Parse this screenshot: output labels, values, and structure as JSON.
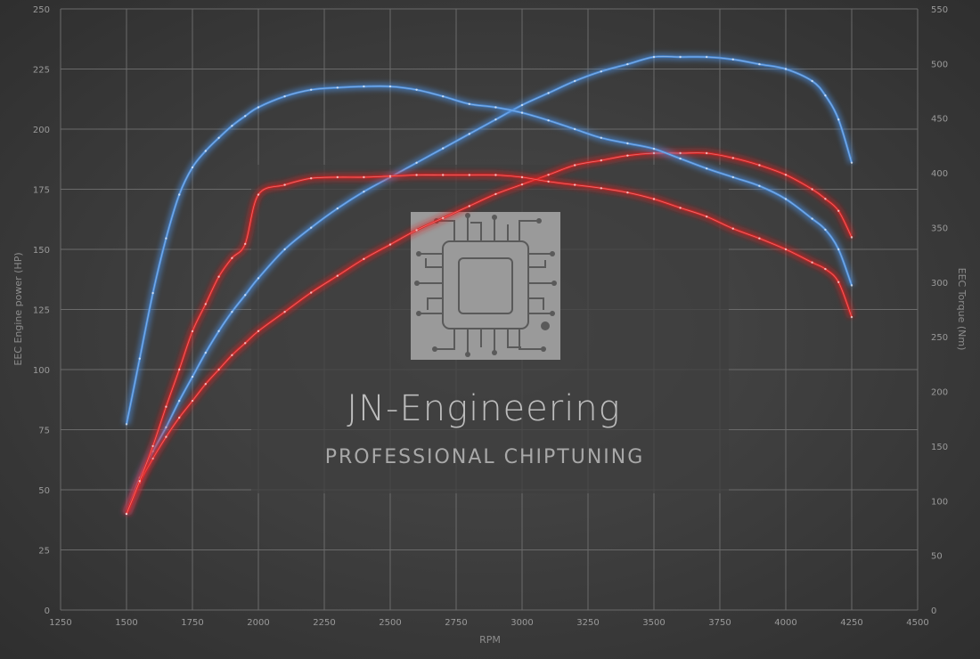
{
  "chart_data": {
    "type": "line",
    "xlabel": "RPM",
    "ylabel_left": "EEC Engine power (HP)",
    "ylabel_right": "EEC Torque (Nm)",
    "xlim": [
      1250,
      4500
    ],
    "ylim_left": [
      0,
      250
    ],
    "ylim_right": [
      0,
      550
    ],
    "x_ticks": [
      1250,
      1500,
      1750,
      2000,
      2250,
      2500,
      2750,
      3000,
      3250,
      3500,
      3750,
      4000,
      4250,
      4500
    ],
    "y_ticks_left": [
      0,
      25,
      50,
      75,
      100,
      125,
      150,
      175,
      200,
      225,
      250
    ],
    "y_ticks_right": [
      0,
      50,
      100,
      150,
      200,
      250,
      300,
      350,
      400,
      450,
      500,
      550
    ],
    "grid": true,
    "colors": {
      "tuned": "#4a90e2",
      "stock": "#e02020",
      "grid": "#6a6a6a",
      "background": "#3a3a3a"
    },
    "series": [
      {
        "kind": "tuned",
        "axis": "left",
        "color": "#4a90e2",
        "points": [
          [
            1500,
            40
          ],
          [
            1550,
            55
          ],
          [
            1600,
            66
          ],
          [
            1650,
            76
          ],
          [
            1700,
            87
          ],
          [
            1750,
            97
          ],
          [
            1800,
            107
          ],
          [
            1850,
            116
          ],
          [
            1900,
            124
          ],
          [
            1950,
            131
          ],
          [
            2000,
            138
          ],
          [
            2100,
            150
          ],
          [
            2200,
            159
          ],
          [
            2300,
            167
          ],
          [
            2400,
            174
          ],
          [
            2500,
            180
          ],
          [
            2600,
            186
          ],
          [
            2700,
            192
          ],
          [
            2800,
            198
          ],
          [
            2900,
            204
          ],
          [
            3000,
            210
          ],
          [
            3100,
            215
          ],
          [
            3200,
            220
          ],
          [
            3300,
            224
          ],
          [
            3400,
            227
          ],
          [
            3500,
            230
          ],
          [
            3600,
            230
          ],
          [
            3700,
            230
          ],
          [
            3800,
            229
          ],
          [
            3900,
            227
          ],
          [
            4000,
            225
          ],
          [
            4100,
            220
          ],
          [
            4150,
            214
          ],
          [
            4200,
            204
          ],
          [
            4250,
            186
          ]
        ]
      },
      {
        "kind": "stock",
        "axis": "left",
        "color": "#e02020",
        "points": [
          [
            1500,
            40
          ],
          [
            1550,
            53
          ],
          [
            1600,
            63
          ],
          [
            1650,
            72
          ],
          [
            1700,
            80
          ],
          [
            1750,
            87
          ],
          [
            1800,
            94
          ],
          [
            1850,
            100
          ],
          [
            1900,
            106
          ],
          [
            1950,
            111
          ],
          [
            2000,
            116
          ],
          [
            2100,
            124
          ],
          [
            2200,
            132
          ],
          [
            2300,
            139
          ],
          [
            2400,
            146
          ],
          [
            2500,
            152
          ],
          [
            2600,
            158
          ],
          [
            2700,
            163
          ],
          [
            2800,
            168
          ],
          [
            2900,
            173
          ],
          [
            3000,
            177
          ],
          [
            3100,
            181
          ],
          [
            3200,
            185
          ],
          [
            3300,
            187
          ],
          [
            3400,
            189
          ],
          [
            3500,
            190
          ],
          [
            3600,
            190
          ],
          [
            3700,
            190
          ],
          [
            3800,
            188
          ],
          [
            3900,
            185
          ],
          [
            4000,
            181
          ],
          [
            4100,
            175
          ],
          [
            4150,
            171
          ],
          [
            4200,
            166
          ],
          [
            4250,
            155
          ]
        ]
      },
      {
        "kind": "tuned",
        "axis": "right",
        "color": "#4a90e2",
        "points": [
          [
            1500,
            170
          ],
          [
            1550,
            230
          ],
          [
            1600,
            290
          ],
          [
            1650,
            340
          ],
          [
            1700,
            380
          ],
          [
            1750,
            405
          ],
          [
            1800,
            420
          ],
          [
            1850,
            432
          ],
          [
            1900,
            443
          ],
          [
            1950,
            452
          ],
          [
            2000,
            460
          ],
          [
            2100,
            470
          ],
          [
            2200,
            476
          ],
          [
            2300,
            478
          ],
          [
            2400,
            479
          ],
          [
            2500,
            479
          ],
          [
            2600,
            476
          ],
          [
            2700,
            470
          ],
          [
            2800,
            463
          ],
          [
            2900,
            460
          ],
          [
            3000,
            455
          ],
          [
            3100,
            448
          ],
          [
            3200,
            440
          ],
          [
            3300,
            432
          ],
          [
            3400,
            427
          ],
          [
            3500,
            422
          ],
          [
            3600,
            413
          ],
          [
            3700,
            404
          ],
          [
            3800,
            396
          ],
          [
            3900,
            388
          ],
          [
            4000,
            376
          ],
          [
            4100,
            358
          ],
          [
            4150,
            348
          ],
          [
            4200,
            330
          ],
          [
            4250,
            297
          ]
        ]
      },
      {
        "kind": "stock",
        "axis": "right",
        "color": "#e02020",
        "points": [
          [
            1500,
            88
          ],
          [
            1550,
            118
          ],
          [
            1600,
            150
          ],
          [
            1650,
            186
          ],
          [
            1700,
            220
          ],
          [
            1750,
            255
          ],
          [
            1800,
            280
          ],
          [
            1850,
            305
          ],
          [
            1900,
            322
          ],
          [
            1950,
            335
          ],
          [
            2000,
            380
          ],
          [
            2100,
            389
          ],
          [
            2200,
            395
          ],
          [
            2300,
            396
          ],
          [
            2400,
            396
          ],
          [
            2500,
            397
          ],
          [
            2600,
            398
          ],
          [
            2700,
            398
          ],
          [
            2800,
            398
          ],
          [
            2900,
            398
          ],
          [
            3000,
            396
          ],
          [
            3100,
            392
          ],
          [
            3200,
            389
          ],
          [
            3300,
            386
          ],
          [
            3400,
            382
          ],
          [
            3500,
            376
          ],
          [
            3600,
            368
          ],
          [
            3700,
            360
          ],
          [
            3800,
            349
          ],
          [
            3900,
            340
          ],
          [
            4000,
            330
          ],
          [
            4100,
            318
          ],
          [
            4150,
            312
          ],
          [
            4200,
            300
          ],
          [
            4250,
            268
          ]
        ]
      }
    ]
  },
  "watermark": {
    "brand": "JN-Engineering",
    "tagline": "PROFESSIONAL CHIPTUNING",
    "logo_icon": "chip-icon"
  }
}
